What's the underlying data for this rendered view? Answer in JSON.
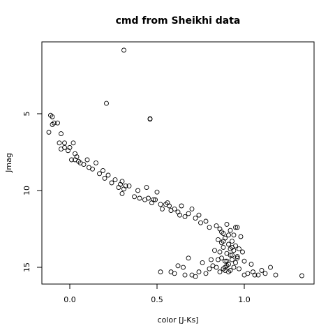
{
  "chart_data": {
    "type": "scatter",
    "title": "cmd from Sheikhi data",
    "x_label": "color [J-Ks]",
    "y_label": "Jmag",
    "color": "#000000",
    "xlim": [
      -0.16,
      1.4
    ],
    "ylim": [
      16.09,
      0.32
    ],
    "xticks": [
      {
        "value": 0,
        "label": "0.0"
      },
      {
        "value": 0.5,
        "label": "0.5"
      },
      {
        "value": 1,
        "label": "1.0"
      }
    ],
    "yticks": [
      5,
      10,
      15
    ],
    "x": [
      -0.11,
      -0.1,
      -0.09,
      -0.12,
      -0.1,
      -0.07,
      -0.05,
      -0.03,
      -0.06,
      -0.05,
      -0.03,
      -0.01,
      0.0,
      0.02,
      0.03,
      0.01,
      0.04,
      0.05,
      0.06,
      0.03,
      0.08,
      0.1,
      0.11,
      0.13,
      0.15,
      0.17,
      0.19,
      0.2,
      0.22,
      0.24,
      0.26,
      0.28,
      0.29,
      0.3,
      0.31,
      0.32,
      0.3,
      0.34,
      0.37,
      0.39,
      0.4,
      0.43,
      0.45,
      0.47,
      0.49,
      0.5,
      0.52,
      0.53,
      0.55,
      0.57,
      0.58,
      0.6,
      0.62,
      0.64,
      0.66,
      0.68,
      0.7,
      0.72,
      0.74,
      0.75,
      0.78,
      0.8,
      0.44,
      0.48,
      0.56,
      0.63,
      0.84,
      0.86,
      0.88,
      0.9,
      0.92,
      0.94,
      0.96,
      0.98,
      0.85,
      0.87,
      0.89,
      0.91,
      0.93,
      0.95,
      0.97,
      0.83,
      0.86,
      0.88,
      0.9,
      0.92,
      0.94,
      0.96,
      0.99,
      0.85,
      0.87,
      0.89,
      0.91,
      0.93,
      0.95,
      0.82,
      0.84,
      0.88,
      0.9,
      0.92,
      0.94,
      0.97,
      1.0,
      0.86,
      0.89,
      0.91,
      0.93,
      0.96,
      0.88,
      0.9,
      0.92,
      0.87,
      0.91,
      0.95,
      0.89,
      0.93,
      0.6,
      0.66,
      0.7,
      0.74,
      0.78,
      0.8,
      1.02,
      1.05,
      1.08,
      1.1,
      1.12,
      1.15,
      1.18,
      0.76,
      1.04,
      1.0,
      0.68,
      0.72,
      0.81,
      1.06,
      0.31,
      0.21,
      0.46,
      0.46,
      0.52,
      0.58,
      1.33,
      0.62,
      0.65
    ],
    "y": [
      5.1,
      5.2,
      5.6,
      6.2,
      5.7,
      5.6,
      6.3,
      6.9,
      6.9,
      7.3,
      7.2,
      7.4,
      7.2,
      6.9,
      7.6,
      8.0,
      7.8,
      8.1,
      8.2,
      8.0,
      8.3,
      8.0,
      8.5,
      8.6,
      8.2,
      8.9,
      8.7,
      9.2,
      9.0,
      9.5,
      9.3,
      9.8,
      9.6,
      9.4,
      9.9,
      9.7,
      10.2,
      9.7,
      10.4,
      10.0,
      10.5,
      10.6,
      10.5,
      10.8,
      10.6,
      10.1,
      10.9,
      11.2,
      10.9,
      11.0,
      11.3,
      11.2,
      11.4,
      11.0,
      11.7,
      11.5,
      11.2,
      11.8,
      11.6,
      12.1,
      12.0,
      12.4,
      9.8,
      10.6,
      10.8,
      11.6,
      12.3,
      12.5,
      12.8,
      12.2,
      12.6,
      12.9,
      12.4,
      13.0,
      13.2,
      13.4,
      13.1,
      13.5,
      13.3,
      13.6,
      13.8,
      13.9,
      14.0,
      13.7,
      14.1,
      14.2,
      13.9,
      14.3,
      14.0,
      14.5,
      14.4,
      14.6,
      14.8,
      14.5,
      14.7,
      14.9,
      15.0,
      15.1,
      14.9,
      15.2,
      15.0,
      15.1,
      14.6,
      15.3,
      15.2,
      12.9,
      13.7,
      14.4,
      13.3,
      14.6,
      13.8,
      12.7,
      15.3,
      12.4,
      15.0,
      14.2,
      15.4,
      15.5,
      15.5,
      15.3,
      15.4,
      15.1,
      15.4,
      15.3,
      15.5,
      15.2,
      15.4,
      15.0,
      15.5,
      14.7,
      14.8,
      15.5,
      14.4,
      15.6,
      14.5,
      15.5,
      0.86,
      4.32,
      5.32,
      5.35,
      15.3,
      15.3,
      15.55,
      14.9,
      15.0
    ]
  }
}
